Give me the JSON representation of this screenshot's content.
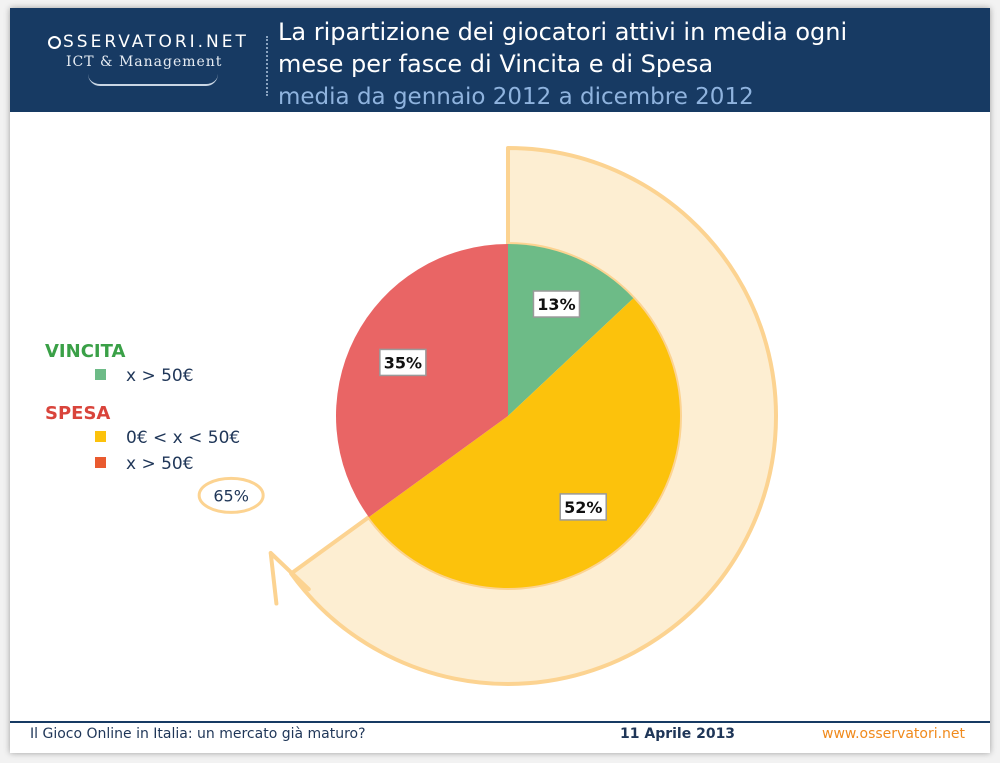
{
  "header": {
    "logo_text": "SSERVATORI.NET",
    "logo_subtitle": "ICT & Management",
    "title_line1": "La ripartizione dei giocatori attivi in media ogni",
    "title_line2": "mese per fasce di Vincita e di Spesa",
    "subtitle": "media da gennaio 2012 a dicembre 2012"
  },
  "legend": {
    "vincita_heading": "VINCITA",
    "vincita_items": [
      "x > 50€"
    ],
    "spesa_heading": "SPESA",
    "spesa_items": [
      "0€ < x < 50€",
      "x > 50€"
    ]
  },
  "colors": {
    "header_bg": "#173a63",
    "vincita_heading": "#3aa047",
    "spesa_heading": "#d9443b",
    "green": "#6dbb87",
    "yellow": "#fcc20c",
    "red": "#e96565",
    "ring": "#fdeed2",
    "ring_border": "#fcd391",
    "legend_red": "#e95a2f",
    "footer_orange": "#f08a1c",
    "footer_text": "#1f3658"
  },
  "chart_data": {
    "type": "pie",
    "title": "La ripartizione dei giocatori attivi in media ogni mese per fasce di Vincita e di Spesa",
    "subtitle": "media da gennaio 2012 a dicembre 2012",
    "slices": [
      {
        "group": "VINCITA",
        "label": "x > 50€",
        "value": 13,
        "display": "13%",
        "color": "#6dbb87"
      },
      {
        "group": "SPESA",
        "label": "0€ < x < 50€",
        "value": 52,
        "display": "52%",
        "color": "#fcc20c"
      },
      {
        "group": "SPESA",
        "label": "x > 50€",
        "value": 35,
        "display": "35%",
        "color": "#e96565"
      }
    ],
    "annotation": {
      "label": "65%",
      "value": 65,
      "description": "arc spanning VINCITA x > 50€ and SPESA 0€ < x < 50€ slices"
    }
  },
  "footer": {
    "left": "Il Gioco Online in Italia: un mercato già maturo?",
    "center": "11 Aprile 2013",
    "right": "www.osservatori.net"
  }
}
